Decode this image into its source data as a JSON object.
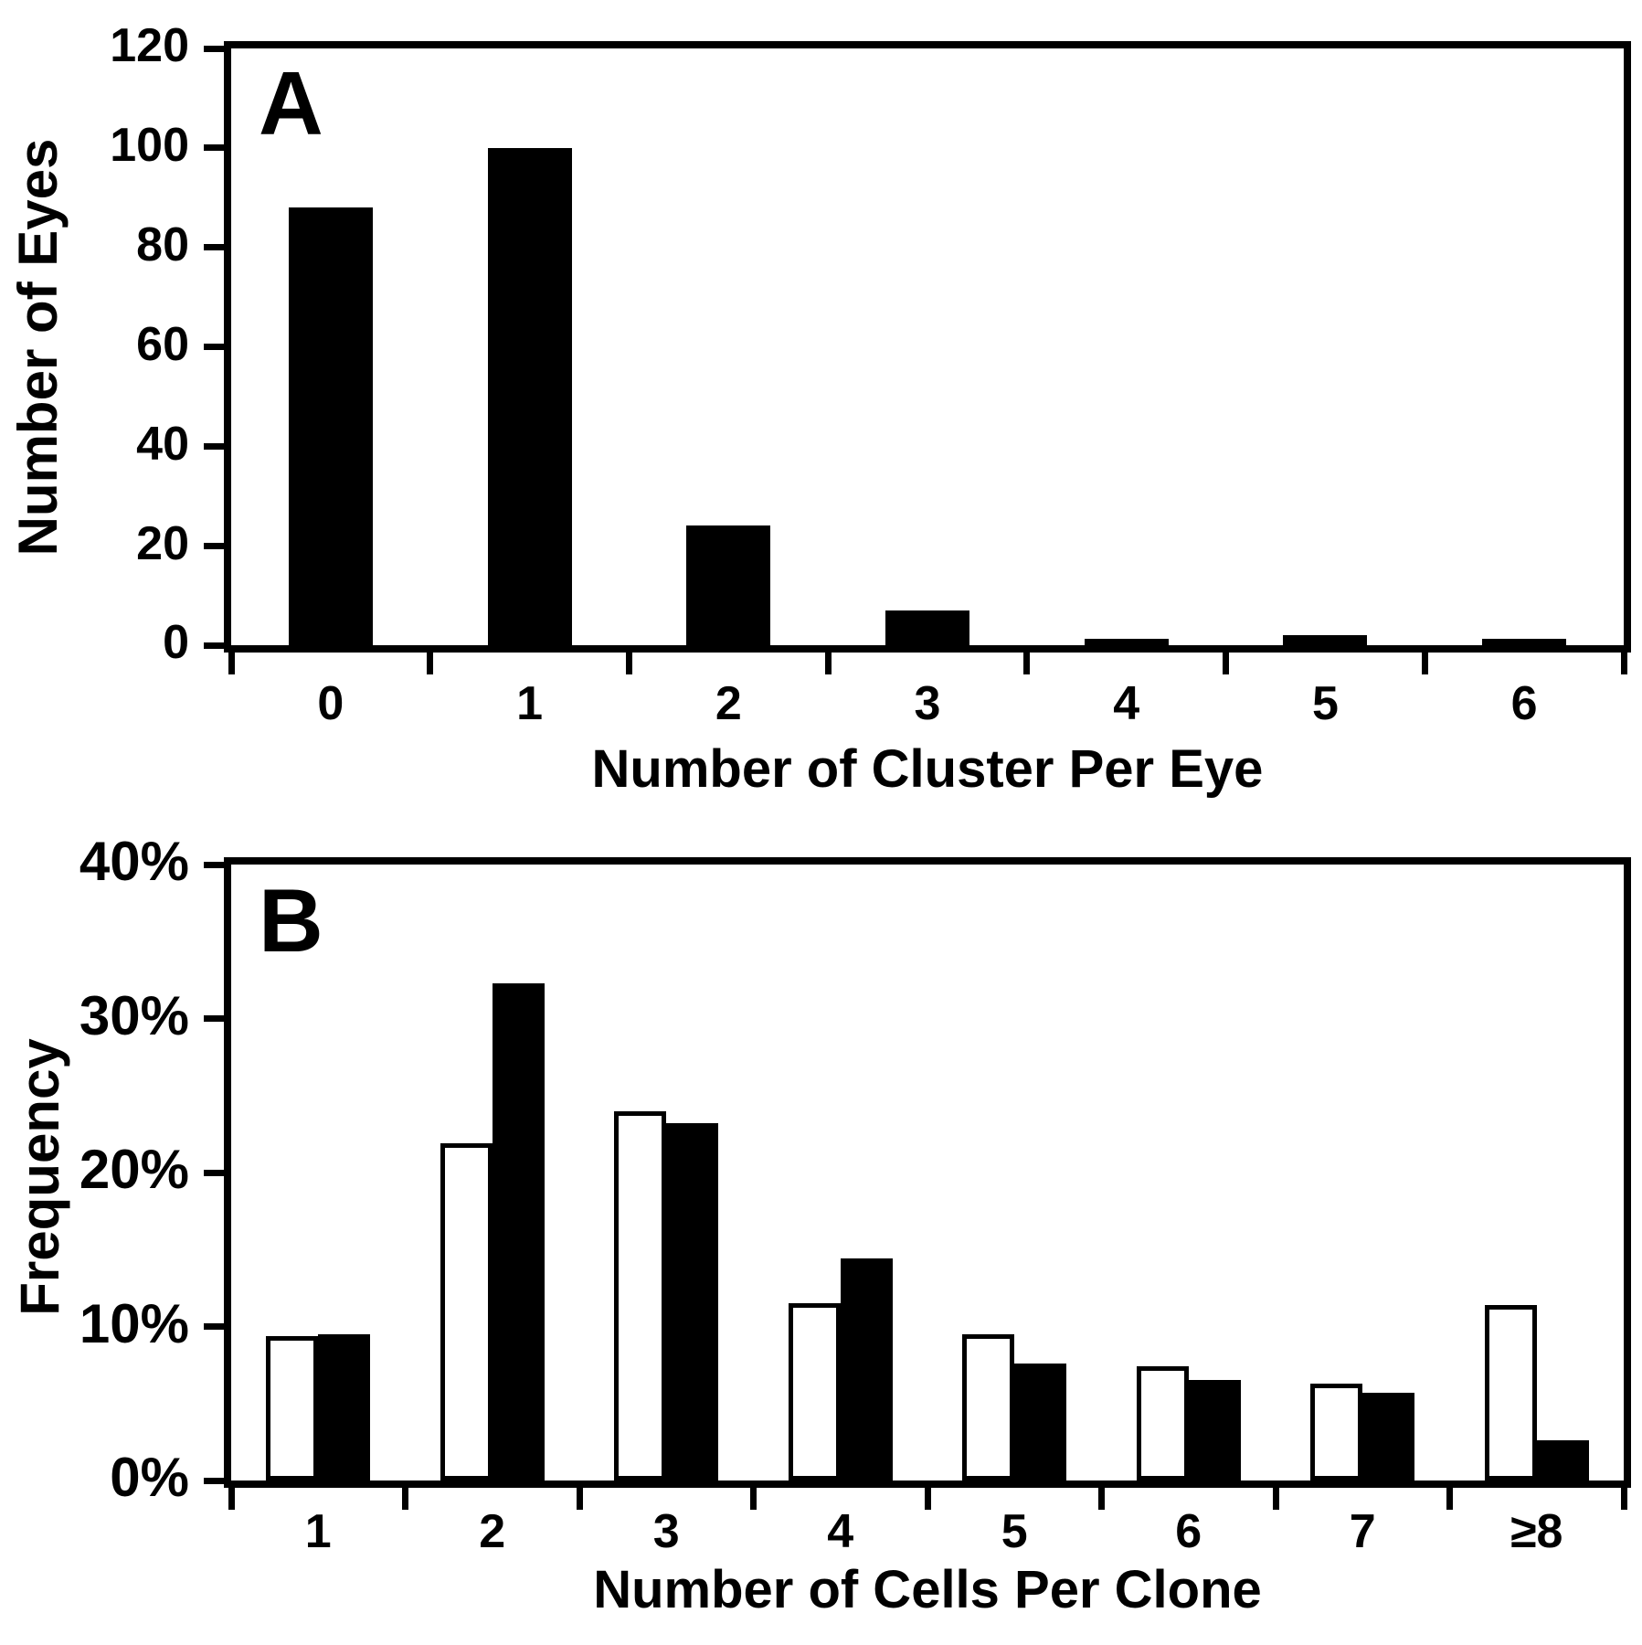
{
  "figure": {
    "background": "#ffffff",
    "ink": "#000000"
  },
  "chart_data": [
    {
      "type": "bar",
      "panel_label": "A",
      "title": "",
      "ylabel": "Number of Eyes",
      "xlabel": "Number of Cluster Per Eye",
      "categories": [
        "0",
        "1",
        "2",
        "3",
        "4",
        "5",
        "6"
      ],
      "series": [
        {
          "name": "eyes-per-cluster-count",
          "fill": "#000000",
          "values": [
            88,
            100,
            24,
            7,
            1.3,
            2,
            1.3
          ]
        }
      ],
      "ylim": [
        0,
        120
      ],
      "yticks": [
        {
          "value": 0,
          "label": "0"
        },
        {
          "value": 20,
          "label": "20"
        },
        {
          "value": 40,
          "label": "40"
        },
        {
          "value": 60,
          "label": "60"
        },
        {
          "value": 80,
          "label": "80"
        },
        {
          "value": 100,
          "label": "100"
        },
        {
          "value": 120,
          "label": "120"
        }
      ],
      "grid": false,
      "legend": null
    },
    {
      "type": "bar",
      "panel_label": "B",
      "title": "",
      "ylabel": "Frequency",
      "xlabel": "Number of Cells Per Clone",
      "categories": [
        "1",
        "2",
        "3",
        "4",
        "5",
        "6",
        "7",
        "≥8"
      ],
      "series": [
        {
          "name": "open-bars",
          "fill": "#ffffff",
          "values": [
            9.4,
            21.9,
            24.0,
            11.5,
            9.5,
            7.4,
            6.3,
            11.4
          ]
        },
        {
          "name": "filled-bars",
          "fill": "#000000",
          "values": [
            9.5,
            32.3,
            23.2,
            14.4,
            7.6,
            6.5,
            5.7,
            2.6
          ]
        }
      ],
      "ylim": [
        0,
        40
      ],
      "yticks": [
        {
          "value": 0,
          "label": "0%"
        },
        {
          "value": 10,
          "label": "10%"
        },
        {
          "value": 20,
          "label": "20%"
        },
        {
          "value": 30,
          "label": "30%"
        },
        {
          "value": 40,
          "label": "40%"
        }
      ],
      "grid": false,
      "legend": null
    }
  ]
}
